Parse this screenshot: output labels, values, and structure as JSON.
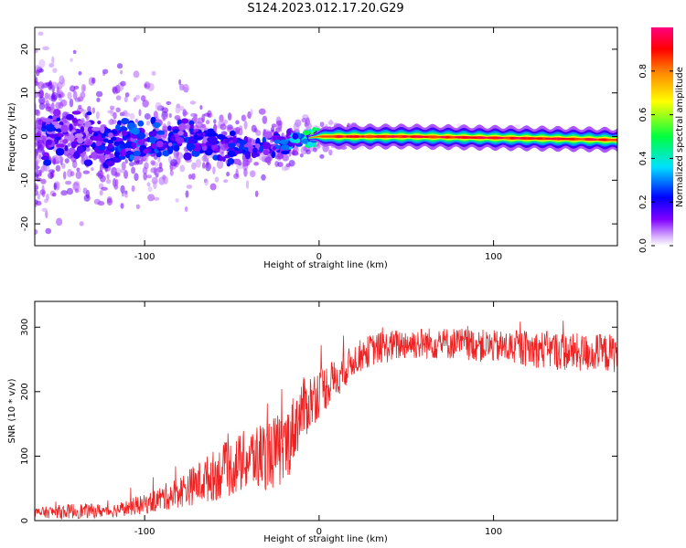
{
  "title": "S124.2023.012.17.20.G29",
  "chart_data": [
    {
      "type": "heatmap",
      "xlabel": "Height of straight line (km)",
      "ylabel": "Frequency (Hz)",
      "xlim": [
        -163,
        171
      ],
      "ylim": [
        -25,
        25
      ],
      "xticks": [
        -100,
        0,
        100
      ],
      "yticks": [
        -20,
        -10,
        0,
        10,
        20
      ],
      "colorbar": {
        "label": "Normalized spectral amplitude",
        "range": [
          0,
          1
        ],
        "ticks": [
          0.0,
          0.2,
          0.4,
          0.6,
          0.8
        ],
        "colors": [
          "#ffffff",
          "#8000ff",
          "#0000ff",
          "#00e0ff",
          "#00ff40",
          "#ffff00",
          "#ff8000",
          "#ff0000",
          "#ff0080"
        ]
      },
      "ridge": {
        "x": [
          -160,
          -140,
          -120,
          -100,
          -80,
          -60,
          -40,
          -20,
          -10,
          0,
          20,
          50,
          100,
          150,
          171
        ],
        "freq": [
          0.5,
          0.5,
          -1.5,
          -1,
          0,
          -1.5,
          -3,
          -1.5,
          -0.5,
          0,
          0,
          0,
          -0.3,
          -0.6,
          -0.8
        ],
        "amplitude": [
          0.2,
          0.15,
          0.2,
          0.25,
          0.2,
          0.2,
          0.2,
          0.25,
          0.35,
          0.5,
          0.9,
          0.85,
          0.85,
          0.8,
          0.7
        ]
      },
      "grid": false
    },
    {
      "type": "line",
      "xlabel": "Height of straight line (km)",
      "ylabel": "SNR (10 * v/v)",
      "xlim": [
        -163,
        171
      ],
      "ylim": [
        0,
        340
      ],
      "xticks": [
        -100,
        0,
        100
      ],
      "yticks": [
        0,
        100,
        200,
        300
      ],
      "series": [
        {
          "color": "#ee2222",
          "envelope_x": [
            -163,
            -140,
            -120,
            -100,
            -80,
            -60,
            -40,
            -20,
            -10,
            0,
            10,
            20,
            30,
            50,
            80,
            100,
            130,
            150,
            171
          ],
          "envelope_y": [
            12,
            15,
            15,
            25,
            45,
            70,
            95,
            110,
            170,
            200,
            220,
            250,
            265,
            275,
            275,
            270,
            265,
            260,
            260
          ],
          "amplitude": [
            8,
            12,
            10,
            15,
            25,
            40,
            50,
            60,
            50,
            40,
            30,
            25,
            25,
            25,
            25,
            25,
            30,
            30,
            30
          ]
        }
      ],
      "grid": false
    }
  ]
}
